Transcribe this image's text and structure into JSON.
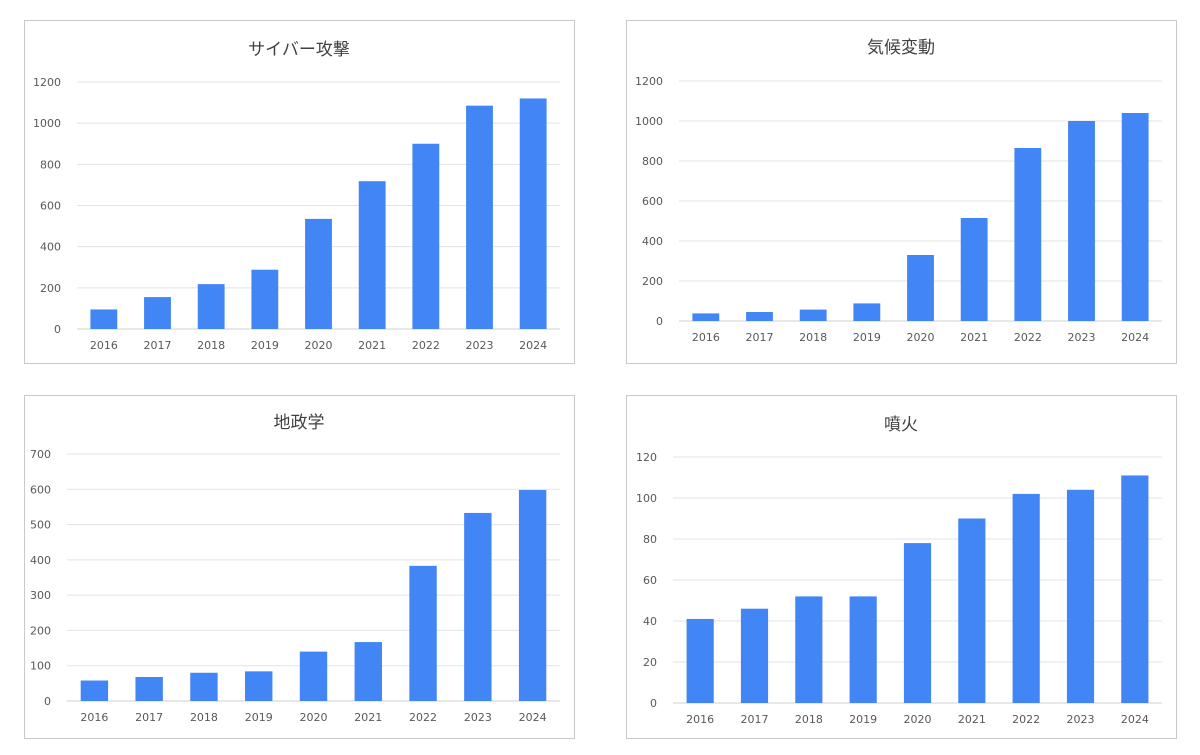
{
  "colors": {
    "bar": "#4285f4"
  },
  "chart_data": [
    {
      "type": "bar",
      "title": "サイバー攻撃",
      "categories": [
        "2016",
        "2017",
        "2018",
        "2019",
        "2020",
        "2021",
        "2022",
        "2023",
        "2024"
      ],
      "values": [
        95,
        155,
        218,
        288,
        535,
        718,
        900,
        1085,
        1120
      ],
      "ylim": [
        0,
        1200
      ],
      "yticks": [
        0,
        200,
        400,
        600,
        800,
        1000,
        1200
      ],
      "grid": true,
      "legend": "none"
    },
    {
      "type": "bar",
      "title": "気候変動",
      "categories": [
        "2016",
        "2017",
        "2018",
        "2019",
        "2020",
        "2021",
        "2022",
        "2023",
        "2024"
      ],
      "values": [
        38,
        45,
        57,
        88,
        330,
        515,
        865,
        1000,
        1040
      ],
      "ylim": [
        0,
        1200
      ],
      "yticks": [
        0,
        200,
        400,
        600,
        800,
        1000,
        1200
      ],
      "grid": true,
      "legend": "none"
    },
    {
      "type": "bar",
      "title": "地政学",
      "categories": [
        "2016",
        "2017",
        "2018",
        "2019",
        "2020",
        "2021",
        "2022",
        "2023",
        "2024"
      ],
      "values": [
        58,
        68,
        80,
        84,
        140,
        167,
        383,
        533,
        598
      ],
      "ylim": [
        0,
        700
      ],
      "yticks": [
        0,
        100,
        200,
        300,
        400,
        500,
        600,
        700
      ],
      "grid": true,
      "legend": "none"
    },
    {
      "type": "bar",
      "title": "噴火",
      "categories": [
        "2016",
        "2017",
        "2018",
        "2019",
        "2020",
        "2021",
        "2022",
        "2023",
        "2024"
      ],
      "values": [
        41,
        46,
        52,
        52,
        78,
        90,
        102,
        104,
        111
      ],
      "ylim": [
        0,
        120
      ],
      "yticks": [
        0,
        20,
        40,
        60,
        80,
        100,
        120
      ],
      "grid": true,
      "legend": "none"
    }
  ]
}
